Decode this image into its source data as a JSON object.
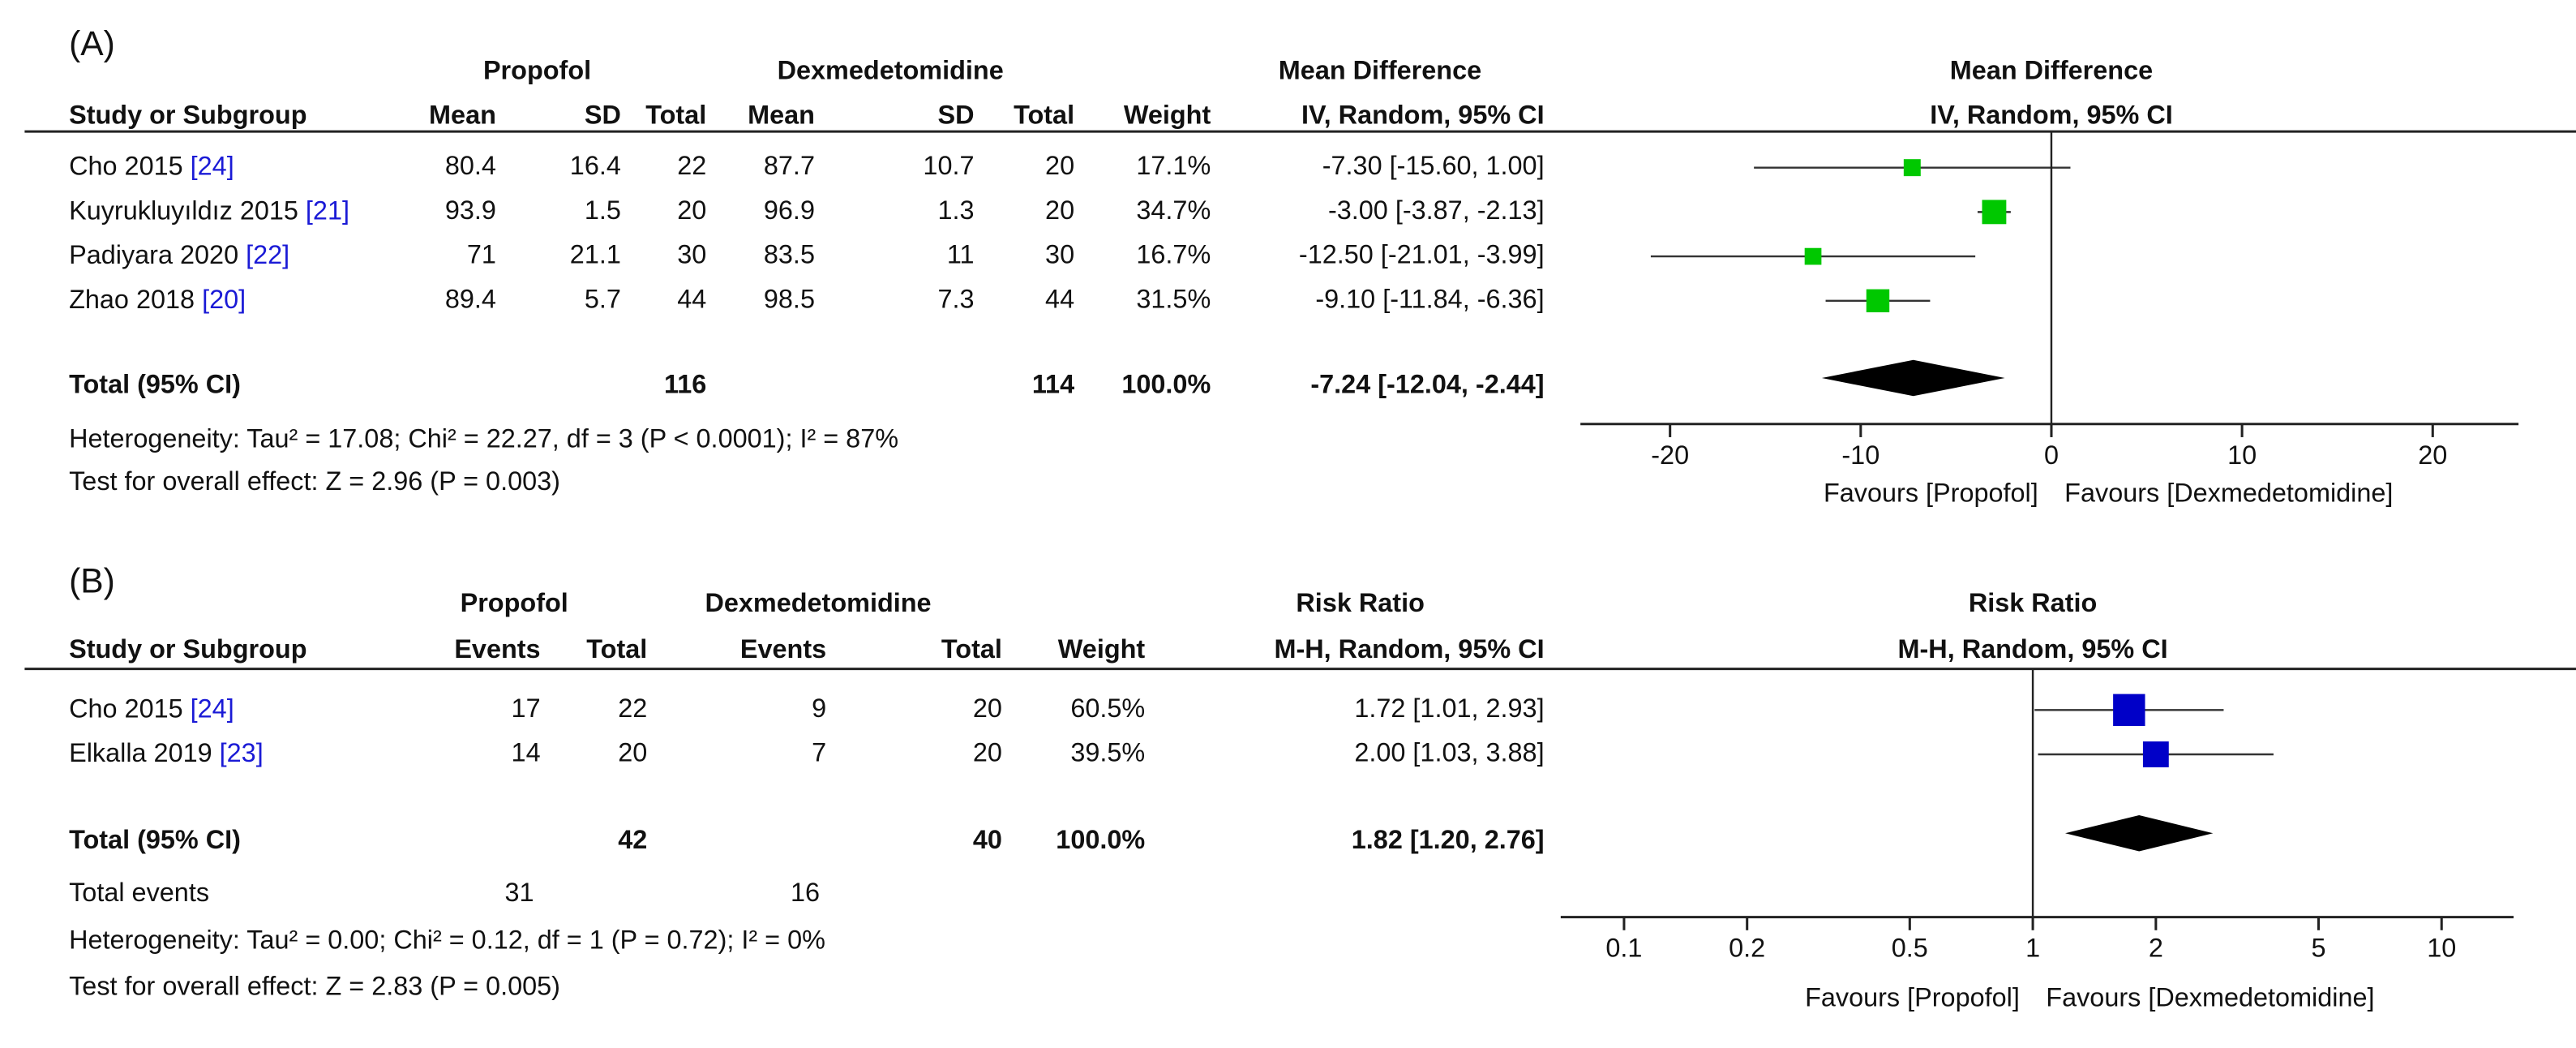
{
  "chart_data": [
    {
      "type": "forest",
      "panel_label": "(A)",
      "groups": [
        "Propofol",
        "Dexmedetomidine",
        "Mean Difference"
      ],
      "columns": [
        "Study or Subgroup",
        "Mean",
        "SD",
        "Total",
        "Mean",
        "SD",
        "Total",
        "Weight",
        "IV, Random, 95% CI"
      ],
      "plot_title": "Mean Difference",
      "plot_subtitle": "IV, Random, 95% CI",
      "studies": [
        {
          "name": "Cho 2015 ",
          "ref": "[24]",
          "cells": [
            80.4,
            16.4,
            22,
            87.7,
            10.7,
            20,
            "17.1%",
            "-7.30 [-15.60, 1.00]"
          ],
          "weight": 17.1,
          "estimate": -7.3,
          "ci_low": -15.6,
          "ci_high": 1.0
        },
        {
          "name": "Kuyrukluyıldız 2015 ",
          "ref": "[21]",
          "cells": [
            93.9,
            1.5,
            20,
            96.9,
            1.3,
            20,
            "34.7%",
            "-3.00 [-3.87, -2.13]"
          ],
          "weight": 34.7,
          "estimate": -3.0,
          "ci_low": -3.87,
          "ci_high": -2.13
        },
        {
          "name": "Padiyara 2020 ",
          "ref": "[22]",
          "cells": [
            71,
            21.1,
            30,
            83.5,
            11,
            30,
            "16.7%",
            "-12.50 [-21.01, -3.99]"
          ],
          "weight": 16.7,
          "estimate": -12.5,
          "ci_low": -21.01,
          "ci_high": -3.99
        },
        {
          "name": "Zhao 2018 ",
          "ref": "[20]",
          "cells": [
            89.4,
            5.7,
            44,
            98.5,
            7.3,
            44,
            "31.5%",
            "-9.10 [-11.84, -6.36]"
          ],
          "weight": 31.5,
          "estimate": -9.1,
          "ci_low": -11.84,
          "ci_high": -6.36
        }
      ],
      "total": {
        "name": "Total (95% CI)",
        "cells": [
          null,
          null,
          116,
          null,
          null,
          114,
          "100.0%",
          "-7.24 [-12.04, -2.44]"
        ],
        "estimate": -7.24,
        "ci_low": -12.04,
        "ci_high": -2.44
      },
      "heterogeneity": "Heterogeneity: Tau² = 17.08; Chi² = 22.27, df = 3 (P < 0.0001); I² = 87%",
      "overall_effect": "Test for overall effect: Z = 2.96 (P = 0.003)",
      "xlim": [
        -24.7,
        24.5
      ],
      "xticks": [
        -20,
        -10,
        0,
        10,
        20
      ],
      "log_x": false,
      "favours_left": "Favours [Propofol]",
      "favours_right": "Favours [Dexmedetomidine]",
      "color": "#00c800"
    },
    {
      "type": "forest",
      "panel_label": "(B)",
      "groups": [
        "Propofol",
        "Dexmedetomidine",
        "Risk Ratio"
      ],
      "columns": [
        "Study or Subgroup",
        "Events",
        "Total",
        "Events",
        "Total",
        "Weight",
        "M-H, Random, 95% CI"
      ],
      "plot_title": "Risk Ratio",
      "plot_subtitle": "M-H, Random, 95% CI",
      "studies": [
        {
          "name": "Cho 2015 ",
          "ref": "[24]",
          "cells": [
            17,
            22,
            9,
            20,
            "60.5%",
            "1.72 [1.01, 2.93]"
          ],
          "weight": 60.5,
          "estimate": 1.72,
          "ci_low": 1.01,
          "ci_high": 2.93
        },
        {
          "name": "Elkalla 2019 ",
          "ref": "[23]",
          "cells": [
            14,
            20,
            7,
            20,
            "39.5%",
            "2.00 [1.03, 3.88]"
          ],
          "weight": 39.5,
          "estimate": 2.0,
          "ci_low": 1.03,
          "ci_high": 3.88
        }
      ],
      "total": {
        "name": "Total (95% CI)",
        "cells": [
          null,
          42,
          null,
          40,
          "100.0%",
          "1.82 [1.20, 2.76]"
        ],
        "estimate": 1.82,
        "ci_low": 1.2,
        "ci_high": 2.76
      },
      "total_events": {
        "name": "Total events",
        "cells": [
          31,
          null,
          16,
          null,
          null,
          null
        ]
      },
      "heterogeneity": "Heterogeneity: Tau² = 0.00; Chi² = 0.12, df = 1 (P = 0.72); I² = 0%",
      "overall_effect": "Test for overall effect: Z = 2.83 (P = 0.005)",
      "xlim": [
        0.07,
        15
      ],
      "xticks": [
        0.1,
        0.2,
        0.5,
        1,
        2,
        5,
        10
      ],
      "log_x": true,
      "favours_left": "Favours [Propofol]",
      "favours_right": "Favours [Dexmedetomidine]",
      "color": "#0000c8"
    }
  ]
}
